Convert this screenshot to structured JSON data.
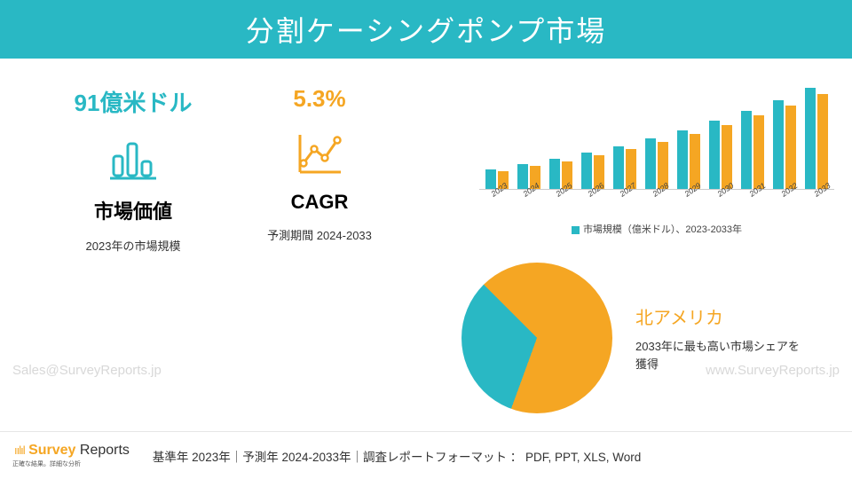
{
  "header": {
    "title": "分割ケーシングポンプ市場"
  },
  "metrics": {
    "market_value": {
      "value": "91億米ドル",
      "value_color": "#29b8c4",
      "title": "市場価値",
      "subtitle": "2023年の市場規模",
      "icon_color": "#29b8c4"
    },
    "cagr": {
      "value": "5.3%",
      "value_color": "#f5a623",
      "title": "CAGR",
      "subtitle": "予測期間 2024-2033",
      "icon_color": "#f5a623"
    }
  },
  "barchart": {
    "type": "bar",
    "categories": [
      "2023",
      "2024",
      "2025",
      "2026",
      "2027",
      "2028",
      "2029",
      "2030",
      "2031",
      "2032",
      "2033"
    ],
    "series": [
      {
        "color": "#29b8c4",
        "values": [
          22,
          28,
          34,
          41,
          48,
          57,
          66,
          77,
          88,
          100,
          114
        ]
      },
      {
        "color": "#f5a623",
        "values": [
          20,
          26,
          31,
          38,
          45,
          53,
          62,
          72,
          83,
          94,
          107
        ]
      }
    ],
    "max_y": 130,
    "legend_label": "市場規模（億米ドル）、2023-2033年",
    "axis_color": "#cccccc",
    "label_fontsize": 9
  },
  "pie": {
    "type": "pie",
    "slices": [
      {
        "color": "#29b8c4",
        "percent": 32
      },
      {
        "color": "#f5a623",
        "percent": 68
      }
    ],
    "title": "北アメリカ",
    "title_color": "#f5a623",
    "subtitle": "2033年に最も高い市場シェアを獲得"
  },
  "watermarks": {
    "left": "Sales@SurveyReports.jp",
    "right": "www.SurveyReports.jp"
  },
  "footer": {
    "logo_survey": "Survey",
    "logo_reports": " Reports",
    "logo_tagline": "正確な結果。詳細な分析",
    "text": "基準年 2023年｜予測年 2024-2033年｜調査レポートフォーマット ： PDF, PPT, XLS, Word"
  },
  "colors": {
    "teal": "#29b8c4",
    "orange": "#f5a623",
    "background": "#ffffff"
  }
}
